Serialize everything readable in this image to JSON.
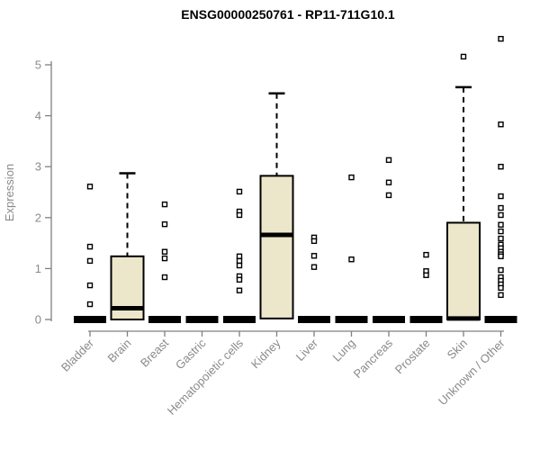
{
  "chart_data": {
    "type": "boxplot",
    "title": "ENSG00000250761 - RP11-711G10.1",
    "ylabel": "Expression",
    "xlabel": "",
    "ylim": [
      0,
      5.6
    ],
    "yticks": [
      0,
      1,
      2,
      3,
      4,
      5
    ],
    "grid": false,
    "legend": false,
    "colors": {
      "box_fill": "#ece6cb",
      "box_stroke": "#000000",
      "median": "#000000",
      "outlier_stroke": "#000000",
      "outlier_fill": "#ffffff",
      "axis": "#808080",
      "tick_label": "#8a8a8a",
      "title": "#000000"
    },
    "categories": [
      "Bladder",
      "Brain",
      "Breast",
      "Gastric",
      "Hematopoietic cells",
      "Kidney",
      "Liver",
      "Lung",
      "Pancreas",
      "Prostate",
      "Skin",
      "Unknown / Other"
    ],
    "series": [
      {
        "category": "Bladder",
        "q1": 0,
        "median": 0,
        "q3": 0,
        "whisker_low": 0,
        "whisker_high": 0,
        "outliers": [
          2.61,
          1.43,
          1.15,
          0.67,
          0.3
        ]
      },
      {
        "category": "Brain",
        "q1": 0,
        "median": 0.22,
        "q3": 1.24,
        "whisker_low": 0,
        "whisker_high": 2.87,
        "outliers": []
      },
      {
        "category": "Breast",
        "q1": 0,
        "median": 0,
        "q3": 0,
        "whisker_low": 0,
        "whisker_high": 0,
        "outliers": [
          2.26,
          1.87,
          1.33,
          1.2,
          0.83
        ]
      },
      {
        "category": "Gastric",
        "q1": 0,
        "median": 0,
        "q3": 0,
        "whisker_low": 0,
        "whisker_high": 0,
        "outliers": []
      },
      {
        "category": "Hematopoietic cells",
        "q1": 0,
        "median": 0,
        "q3": 0,
        "whisker_low": 0,
        "whisker_high": 0,
        "outliers": [
          2.51,
          2.12,
          2.05,
          1.24,
          1.15,
          1.06,
          0.85,
          0.78,
          0.57
        ]
      },
      {
        "category": "Kidney",
        "q1": 0.02,
        "median": 1.66,
        "q3": 2.82,
        "whisker_low": 0,
        "whisker_high": 4.44,
        "outliers": []
      },
      {
        "category": "Liver",
        "q1": 0,
        "median": 0,
        "q3": 0,
        "whisker_low": 0,
        "whisker_high": 0,
        "outliers": [
          1.61,
          1.54,
          1.25,
          1.03
        ]
      },
      {
        "category": "Lung",
        "q1": 0,
        "median": 0,
        "q3": 0,
        "whisker_low": 0,
        "whisker_high": 0,
        "outliers": [
          2.79,
          1.18
        ]
      },
      {
        "category": "Pancreas",
        "q1": 0,
        "median": 0,
        "q3": 0,
        "whisker_low": 0,
        "whisker_high": 0,
        "outliers": [
          3.13,
          2.69,
          2.44
        ]
      },
      {
        "category": "Prostate",
        "q1": 0,
        "median": 0,
        "q3": 0,
        "whisker_low": 0,
        "whisker_high": 0,
        "outliers": [
          1.27,
          0.95,
          0.87
        ]
      },
      {
        "category": "Skin",
        "q1": 0,
        "median": 0.02,
        "q3": 1.9,
        "whisker_low": 0,
        "whisker_high": 4.56,
        "outliers": [
          5.16
        ]
      },
      {
        "category": "Unknown / Other",
        "q1": 0,
        "median": 0,
        "q3": 0,
        "whisker_low": 0,
        "whisker_high": 0,
        "outliers": [
          5.51,
          3.83,
          3.0,
          2.42,
          2.19,
          2.05,
          1.86,
          1.73,
          1.59,
          1.47,
          1.4,
          1.33,
          1.28,
          1.24,
          0.97,
          0.83,
          0.76,
          0.69,
          0.62,
          0.48
        ]
      }
    ]
  }
}
